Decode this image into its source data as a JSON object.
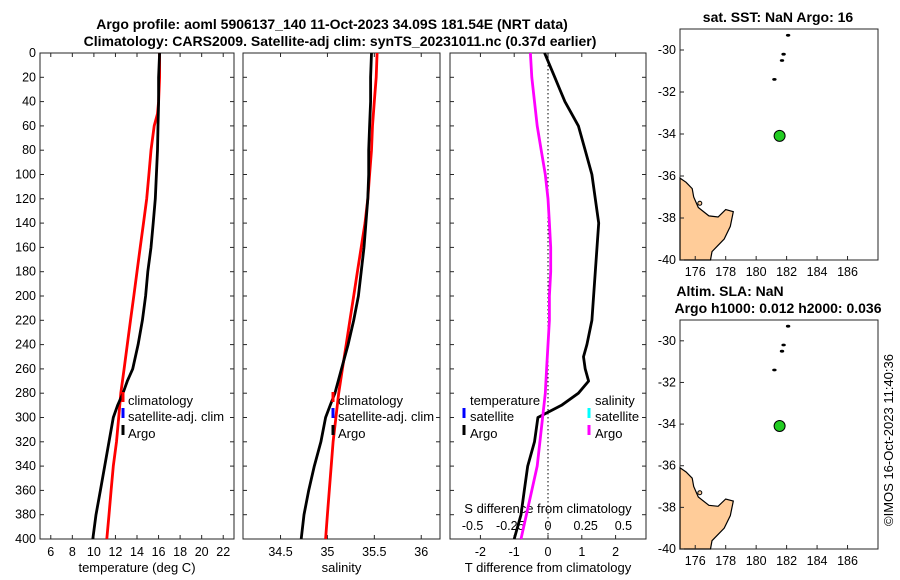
{
  "titles": {
    "line1": "Argo profile: aoml 5906137_140 11-Oct-2023 34.09S 181.54E (NRT data)",
    "line2": "Climatology: CARS2009. Satellite-adj clim: synTS_20231011.nc (0.37d earlier)",
    "map1": "sat. SST: NaN Argo: 16",
    "map2_line1": "Altim. SLA: NaN",
    "map2_line2": "Argo h1000: 0.012 h2000: 0.036"
  },
  "watermark": "©IMOS 16-Oct-2023 11:40:36",
  "colors": {
    "climatology": "#ff0000",
    "satellite": "#0000ff",
    "argo": "#000000",
    "salinity_diff": "#ff00ff",
    "salinity_sat": "#00ffff",
    "land": "#ffcc99",
    "float": "#22cc22"
  },
  "chart_data": [
    {
      "type": "line",
      "name": "temperature",
      "xlabel": "temperature (deg C)",
      "ylabel": "depth",
      "xlim": [
        5,
        23
      ],
      "ylim": [
        0,
        400
      ],
      "xticks": [
        6,
        8,
        10,
        12,
        14,
        16,
        18,
        20,
        22
      ],
      "yticks": [
        0,
        20,
        40,
        60,
        80,
        100,
        120,
        140,
        160,
        180,
        200,
        220,
        240,
        260,
        280,
        300,
        320,
        340,
        360,
        380,
        400
      ],
      "legend": [
        "climatology",
        "satellite-adj. clim",
        "Argo"
      ],
      "series": [
        {
          "name": "climatology",
          "color": "#ff0000",
          "depth": [
            0,
            20,
            40,
            50,
            60,
            80,
            100,
            120,
            140,
            160,
            180,
            200,
            220,
            240,
            260,
            280,
            300,
            320,
            340,
            360,
            380,
            400
          ],
          "values": [
            16.1,
            16.1,
            16.0,
            15.9,
            15.6,
            15.3,
            15.1,
            14.9,
            14.6,
            14.3,
            14.0,
            13.7,
            13.4,
            13.1,
            12.8,
            12.5,
            12.3,
            12.1,
            11.8,
            11.6,
            11.4,
            11.2
          ]
        },
        {
          "name": "Argo",
          "color": "#000000",
          "depth": [
            0,
            20,
            40,
            60,
            80,
            100,
            120,
            140,
            160,
            180,
            200,
            220,
            240,
            260,
            270,
            280,
            290,
            300,
            320,
            340,
            360,
            380,
            400
          ],
          "values": [
            16.1,
            16.0,
            16.0,
            15.95,
            15.9,
            15.8,
            15.7,
            15.5,
            15.3,
            15.0,
            14.8,
            14.5,
            14.1,
            13.6,
            13.1,
            12.7,
            12.2,
            11.8,
            11.4,
            11.0,
            10.6,
            10.2,
            9.9
          ]
        }
      ]
    },
    {
      "type": "line",
      "name": "salinity",
      "xlabel": "salinity",
      "ylabel": "depth",
      "xlim": [
        34.1,
        36.2
      ],
      "ylim": [
        0,
        400
      ],
      "xticks": [
        34.5,
        35,
        35.5,
        36
      ],
      "legend": [
        "climatology",
        "satellite-adj. clim",
        "Argo"
      ],
      "series": [
        {
          "name": "climatology",
          "color": "#ff0000",
          "depth": [
            0,
            20,
            40,
            60,
            80,
            100,
            120,
            140,
            160,
            180,
            200,
            220,
            240,
            260,
            280,
            300,
            320,
            340,
            360,
            380,
            400
          ],
          "values": [
            35.53,
            35.52,
            35.5,
            35.48,
            35.47,
            35.45,
            35.43,
            35.4,
            35.36,
            35.32,
            35.28,
            35.24,
            35.2,
            35.16,
            35.12,
            35.09,
            35.06,
            35.04,
            35.02,
            35.0,
            34.98
          ]
        },
        {
          "name": "Argo",
          "color": "#000000",
          "depth": [
            0,
            20,
            40,
            60,
            80,
            100,
            120,
            140,
            160,
            180,
            200,
            220,
            240,
            260,
            280,
            290,
            300,
            320,
            340,
            360,
            380,
            400
          ],
          "values": [
            35.47,
            35.46,
            35.46,
            35.45,
            35.44,
            35.44,
            35.43,
            35.41,
            35.39,
            35.36,
            35.33,
            35.28,
            35.22,
            35.15,
            35.08,
            35.03,
            34.98,
            34.93,
            34.86,
            34.8,
            34.75,
            34.72
          ]
        }
      ]
    },
    {
      "type": "line",
      "name": "difference",
      "xlabel": "T difference from climatology",
      "top_axis_label": "S difference from climatology",
      "xlim": [
        -2.9,
        2.9
      ],
      "ylim": [
        0,
        400
      ],
      "xticks": [
        -2,
        -1,
        0,
        1,
        2
      ],
      "top_ticks": [
        "-0.5",
        "-0.25",
        "0",
        "0.25",
        "0.5"
      ],
      "top_tick_values": [
        -0.5,
        -0.25,
        0,
        0.25,
        0.5
      ],
      "legend_left": [
        "temperature",
        "satellite",
        "Argo"
      ],
      "legend_right": [
        "salinity",
        "satellite",
        "Argo"
      ],
      "series": [
        {
          "name": "T difference Argo",
          "color": "#000000",
          "depth": [
            0,
            10,
            20,
            30,
            40,
            50,
            60,
            80,
            100,
            120,
            140,
            160,
            180,
            200,
            220,
            240,
            250,
            260,
            270,
            280,
            290,
            300,
            320,
            340,
            360,
            380,
            400
          ],
          "values": [
            -0.1,
            0.05,
            0.2,
            0.35,
            0.5,
            0.7,
            0.9,
            1.1,
            1.3,
            1.4,
            1.5,
            1.45,
            1.4,
            1.35,
            1.3,
            1.15,
            1.05,
            1.1,
            1.2,
            0.9,
            0.4,
            -0.3,
            -0.4,
            -0.6,
            -0.7,
            -0.8,
            -1.0
          ]
        },
        {
          "name": "S difference Argo",
          "color": "#ff00ff",
          "depth": [
            0,
            20,
            40,
            60,
            80,
            100,
            120,
            140,
            160,
            180,
            200,
            220,
            240,
            260,
            280,
            300,
            320,
            340,
            360,
            380,
            400
          ],
          "values": [
            -0.13,
            -0.12,
            -0.1,
            -0.08,
            -0.05,
            -0.02,
            0.0,
            0.01,
            0.02,
            0.02,
            0.01,
            0.01,
            0.0,
            -0.01,
            -0.02,
            -0.04,
            -0.06,
            -0.08,
            -0.12,
            -0.16,
            -0.2
          ]
        }
      ]
    },
    {
      "type": "scatter",
      "name": "map-sst",
      "xlim": [
        175,
        188
      ],
      "ylim": [
        -40,
        -29
      ],
      "xticks": [
        176,
        178,
        180,
        182,
        184,
        186
      ],
      "yticks": [
        -30,
        -32,
        -34,
        -36,
        -38,
        -40
      ],
      "islands": [
        [
          182.1,
          -29.3
        ],
        [
          181.8,
          -30.2
        ],
        [
          181.7,
          -30.5
        ],
        [
          181.2,
          -31.4
        ]
      ],
      "float": [
        181.54,
        -34.09
      ]
    },
    {
      "type": "scatter",
      "name": "map-altim",
      "xlim": [
        175,
        188
      ],
      "ylim": [
        -40,
        -29
      ],
      "xticks": [
        176,
        178,
        180,
        182,
        184,
        186
      ],
      "yticks": [
        -30,
        -32,
        -34,
        -36,
        -38,
        -40
      ],
      "islands": [
        [
          182.1,
          -29.3
        ],
        [
          181.8,
          -30.2
        ],
        [
          181.7,
          -30.5
        ],
        [
          181.2,
          -31.4
        ]
      ],
      "float": [
        181.54,
        -34.09
      ]
    }
  ]
}
